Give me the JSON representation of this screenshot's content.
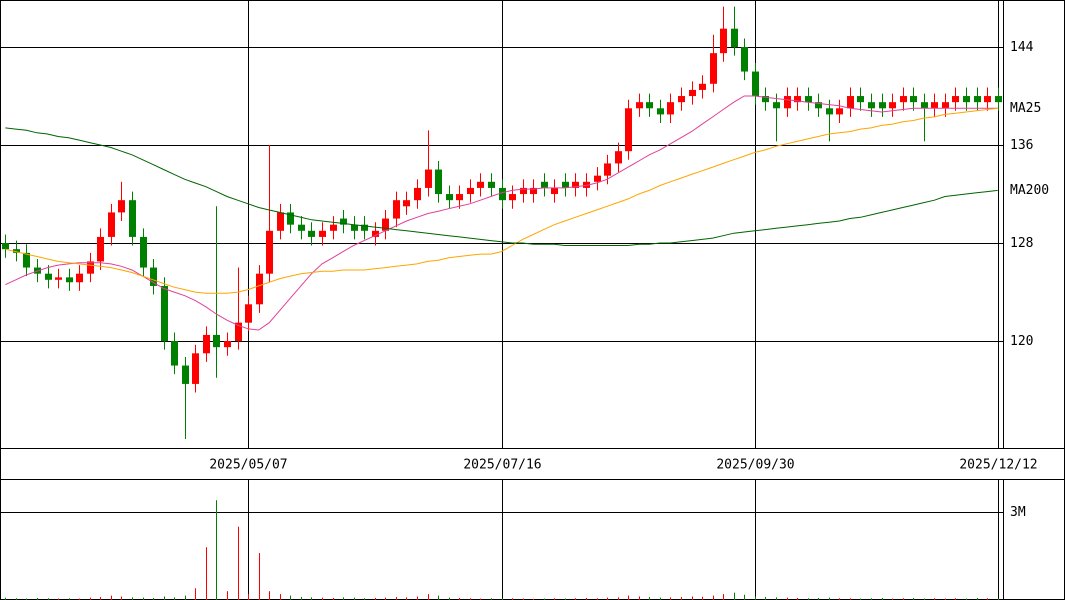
{
  "chart_data": [
    {
      "type": "candlestick",
      "categories": [
        null,
        null,
        null,
        null,
        null,
        null,
        null,
        null,
        null,
        null,
        null,
        null,
        null,
        null,
        null,
        null,
        null,
        null,
        null,
        null,
        null,
        null,
        null,
        "2025/05/07",
        null,
        null,
        null,
        null,
        null,
        null,
        null,
        null,
        null,
        null,
        null,
        null,
        null,
        null,
        null,
        null,
        null,
        null,
        null,
        null,
        null,
        null,
        null,
        "2025/07/16",
        null,
        null,
        null,
        null,
        null,
        null,
        null,
        null,
        null,
        null,
        null,
        null,
        null,
        null,
        null,
        null,
        null,
        null,
        null,
        null,
        null,
        null,
        null,
        "2025/09/30",
        null,
        null,
        null,
        null,
        null,
        null,
        null,
        null,
        null,
        null,
        null,
        null,
        null,
        null,
        null,
        null,
        null,
        null,
        null,
        null,
        null,
        null,
        "2025/12/12"
      ],
      "open": [
        128,
        127.5,
        127.2,
        126,
        125.5,
        125,
        125.2,
        124.8,
        125.5,
        126.5,
        128.5,
        130.5,
        131.5,
        128.5,
        126,
        124.5,
        120,
        118,
        116.5,
        119,
        120.5,
        119.5,
        120,
        121.5,
        123,
        125.5,
        129,
        130.5,
        129.5,
        129,
        128.5,
        129,
        130,
        129.5,
        129.5,
        128.5,
        129,
        130,
        131,
        131.5,
        132.5,
        134,
        132,
        131.5,
        132,
        132.5,
        133,
        132.5,
        131.5,
        132,
        132,
        133,
        132,
        133,
        132.5,
        132.5,
        133,
        133.5,
        134.5,
        135.5,
        139,
        139.5,
        139,
        138.5,
        139.5,
        140,
        140.5,
        141,
        143.5,
        145.5,
        144,
        142,
        140,
        139.5,
        139,
        139.5,
        140,
        139.5,
        139,
        138.5,
        139,
        140,
        139.5,
        139.5,
        139,
        139.5,
        140,
        139.5,
        139,
        139,
        139.5,
        140,
        140,
        139.5,
        140
      ],
      "high": [
        128.7,
        128.2,
        127.9,
        126.7,
        126.2,
        125.9,
        125.9,
        126.2,
        127.2,
        129.2,
        131.2,
        133,
        132.2,
        129.2,
        126.7,
        125.2,
        120.7,
        118.7,
        119.7,
        121.2,
        131,
        120.7,
        126,
        123.7,
        126.2,
        136,
        131.2,
        131.2,
        130.2,
        129.7,
        129.7,
        130.2,
        130.7,
        130.2,
        130.2,
        129.7,
        130.7,
        132.2,
        132.2,
        133.2,
        137.2,
        134.7,
        132.7,
        132.7,
        133.2,
        133.7,
        133.7,
        133.2,
        132.7,
        133.2,
        133.2,
        133.7,
        133.2,
        133.7,
        133.7,
        133.7,
        134.2,
        135.2,
        136.2,
        139.7,
        140.2,
        140.2,
        139.7,
        140.2,
        140.7,
        141.2,
        141.7,
        145,
        147.3,
        147.3,
        144.7,
        142.7,
        140.7,
        140.2,
        140.7,
        140.7,
        140.7,
        140.2,
        139.7,
        139.7,
        140.7,
        140.7,
        140.2,
        140.2,
        140.2,
        140.7,
        140.7,
        140.2,
        140.2,
        140.2,
        140.7,
        140.7,
        140.7,
        140.7,
        140.7
      ],
      "low": [
        126.8,
        126.5,
        125.3,
        124.8,
        124.3,
        124.3,
        124.1,
        124.1,
        124.8,
        125.8,
        127.8,
        129.8,
        127.8,
        125.3,
        123.8,
        119.3,
        117.3,
        112,
        115.8,
        118.3,
        117,
        118.8,
        119.3,
        120.8,
        122.3,
        124.8,
        128.3,
        128.8,
        128.3,
        127.8,
        127.8,
        128.3,
        128.8,
        128.3,
        128.3,
        127.8,
        128.3,
        129.3,
        130.3,
        130.8,
        131.8,
        131.3,
        130.8,
        130.8,
        131.3,
        131.8,
        131.8,
        130.8,
        130.8,
        131.3,
        131.3,
        131.8,
        131.3,
        131.8,
        131.8,
        131.8,
        132.3,
        132.8,
        133.8,
        134.8,
        138.3,
        138.3,
        137.8,
        137.8,
        138.8,
        139.3,
        139.8,
        140.3,
        142.8,
        143.3,
        141.3,
        139.3,
        138.8,
        136.3,
        138.3,
        138.8,
        138.8,
        138.3,
        136.3,
        137.8,
        138.3,
        138.8,
        138.3,
        138.3,
        138.3,
        138.8,
        138.8,
        136.3,
        138.3,
        138.3,
        138.8,
        138.8,
        138.8,
        138.8,
        138.8
      ],
      "close": [
        127.5,
        127.2,
        126,
        125.5,
        125,
        125.2,
        124.8,
        125.5,
        126.5,
        128.5,
        130.5,
        131.5,
        128.5,
        126,
        124.5,
        120,
        118,
        116.5,
        119,
        120.5,
        119.5,
        120,
        121.5,
        123,
        125.5,
        129,
        130.5,
        129.5,
        129,
        128.5,
        129,
        129.5,
        129.5,
        129,
        129,
        129,
        130,
        131.5,
        131.5,
        132.5,
        134,
        132,
        131.5,
        132,
        132.5,
        133,
        132.5,
        131.5,
        132,
        132.5,
        132.5,
        132.5,
        132.5,
        132.5,
        133,
        133,
        133.5,
        134.5,
        135.5,
        139,
        139.5,
        139,
        138.5,
        139.5,
        140,
        140.5,
        141,
        143.5,
        145.5,
        144,
        142,
        140,
        139.5,
        139,
        140,
        140,
        139.5,
        139,
        138.5,
        139,
        140,
        139.5,
        139,
        139,
        139.5,
        140,
        139.5,
        139,
        139.5,
        139.5,
        140,
        139.5,
        139.5,
        140,
        139.5
      ],
      "up_color": "#ff0000",
      "down_color": "#008000",
      "series": [
        {
          "color": "#e0409c",
          "values": [
            124.6,
            125,
            125.4,
            125.7,
            126,
            126.2,
            126.3,
            126.4,
            126.4,
            126.4,
            126.3,
            126.1,
            125.8,
            125.3,
            124.8,
            124.3,
            124,
            123.7,
            123.3,
            122.8,
            122.2,
            121.7,
            121.3,
            121,
            120.9,
            121.5,
            122.5,
            123.5,
            124.5,
            125.5,
            126.3,
            126.8,
            127.3,
            127.8,
            128.2,
            128.6,
            129,
            129.4,
            129.8,
            130.1,
            130.4,
            130.6,
            130.8,
            131,
            131.2,
            131.5,
            131.8,
            132.1,
            132.3,
            132.4,
            132.4,
            132.5,
            132.5,
            132.5,
            132.6,
            132.7,
            132.9,
            133.2,
            133.7,
            134.2,
            134.7,
            135.2,
            135.6,
            136.1,
            136.6,
            137.1,
            137.7,
            138.3,
            138.9,
            139.5,
            140,
            140,
            139.9,
            139.8,
            139.7,
            139.6,
            139.5,
            139.4,
            139.3,
            139.2,
            139,
            138.9,
            138.8,
            138.7,
            138.8,
            138.9,
            139,
            139,
            139,
            139,
            139,
            139,
            139,
            139,
            139
          ]
        },
        {
          "name": "MA25",
          "color": "#ffa500",
          "values": [
            127.5,
            127.3,
            127.1,
            126.9,
            126.7,
            126.5,
            126.4,
            126.3,
            126.2,
            126.1,
            126,
            125.8,
            125.6,
            125.3,
            125,
            124.7,
            124.4,
            124.2,
            124,
            123.9,
            123.9,
            123.9,
            124,
            124.2,
            124.5,
            124.8,
            125.1,
            125.3,
            125.5,
            125.6,
            125.7,
            125.7,
            125.8,
            125.8,
            125.8,
            125.9,
            126,
            126.1,
            126.2,
            126.3,
            126.5,
            126.6,
            126.8,
            126.9,
            127,
            127.1,
            127.1,
            127.3,
            127.8,
            128.3,
            128.7,
            129.1,
            129.5,
            129.8,
            130.1,
            130.4,
            130.7,
            131,
            131.3,
            131.6,
            132,
            132.3,
            132.7,
            133,
            133.3,
            133.6,
            133.9,
            134.2,
            134.5,
            134.8,
            135.1,
            135.4,
            135.6,
            135.9,
            136.1,
            136.3,
            136.5,
            136.7,
            136.9,
            137,
            137.1,
            137.3,
            137.4,
            137.6,
            137.7,
            137.9,
            138,
            138.2,
            138.3,
            138.5,
            138.6,
            138.7,
            138.8,
            138.9,
            139
          ]
        },
        {
          "name": "MA200",
          "color": "#006400",
          "values": [
            137.4,
            137.3,
            137.2,
            137,
            136.9,
            136.7,
            136.6,
            136.4,
            136.2,
            136,
            135.8,
            135.5,
            135.2,
            134.8,
            134.4,
            134,
            133.6,
            133.2,
            132.9,
            132.6,
            132.2,
            131.8,
            131.5,
            131.2,
            130.9,
            130.7,
            130.5,
            130.3,
            130.1,
            129.9,
            129.8,
            129.7,
            129.6,
            129.5,
            129.4,
            129.3,
            129.2,
            129.1,
            129,
            128.9,
            128.8,
            128.7,
            128.6,
            128.5,
            128.4,
            128.3,
            128.2,
            128.1,
            128,
            128,
            127.9,
            127.9,
            127.9,
            127.8,
            127.8,
            127.8,
            127.8,
            127.8,
            127.8,
            127.8,
            127.9,
            127.9,
            128,
            128,
            128.1,
            128.2,
            128.3,
            128.4,
            128.6,
            128.8,
            128.9,
            129,
            129.1,
            129.2,
            129.3,
            129.4,
            129.5,
            129.6,
            129.7,
            129.8,
            130,
            130.1,
            130.3,
            130.5,
            130.7,
            130.9,
            131.1,
            131.3,
            131.5,
            131.8,
            131.9,
            132,
            132.1,
            132.2,
            132.3
          ]
        }
      ],
      "ylim": [
        111.27,
        147.84
      ],
      "yticks": [
        144,
        136,
        128,
        120
      ],
      "grid": true
    },
    {
      "type": "bar",
      "values": [
        80000,
        60000,
        50000,
        70000,
        60000,
        50000,
        60000,
        50000,
        80000,
        100000,
        150000,
        120000,
        90000,
        80000,
        70000,
        120000,
        90000,
        150000,
        400000,
        1800000,
        3400000,
        300000,
        2500000,
        200000,
        1600000,
        300000,
        200000,
        150000,
        100000,
        90000,
        80000,
        70000,
        90000,
        80000,
        60000,
        70000,
        80000,
        100000,
        90000,
        120000,
        200000,
        150000,
        80000,
        70000,
        60000,
        50000,
        60000,
        50000,
        60000,
        50000,
        40000,
        50000,
        60000,
        50000,
        60000,
        70000,
        60000,
        80000,
        90000,
        150000,
        120000,
        100000,
        80000,
        90000,
        100000,
        120000,
        110000,
        150000,
        200000,
        250000,
        180000,
        120000,
        100000,
        90000,
        80000,
        70000,
        60000,
        70000,
        80000,
        60000,
        60000,
        50000,
        60000,
        70000,
        50000,
        60000,
        70000,
        50000,
        60000,
        50000,
        60000,
        50000,
        70000,
        60000,
        50000
      ],
      "ylim": [
        0,
        4090000
      ],
      "yticks": [
        {
          "value": 3000000,
          "label": "3M"
        }
      ],
      "grid": true
    }
  ]
}
